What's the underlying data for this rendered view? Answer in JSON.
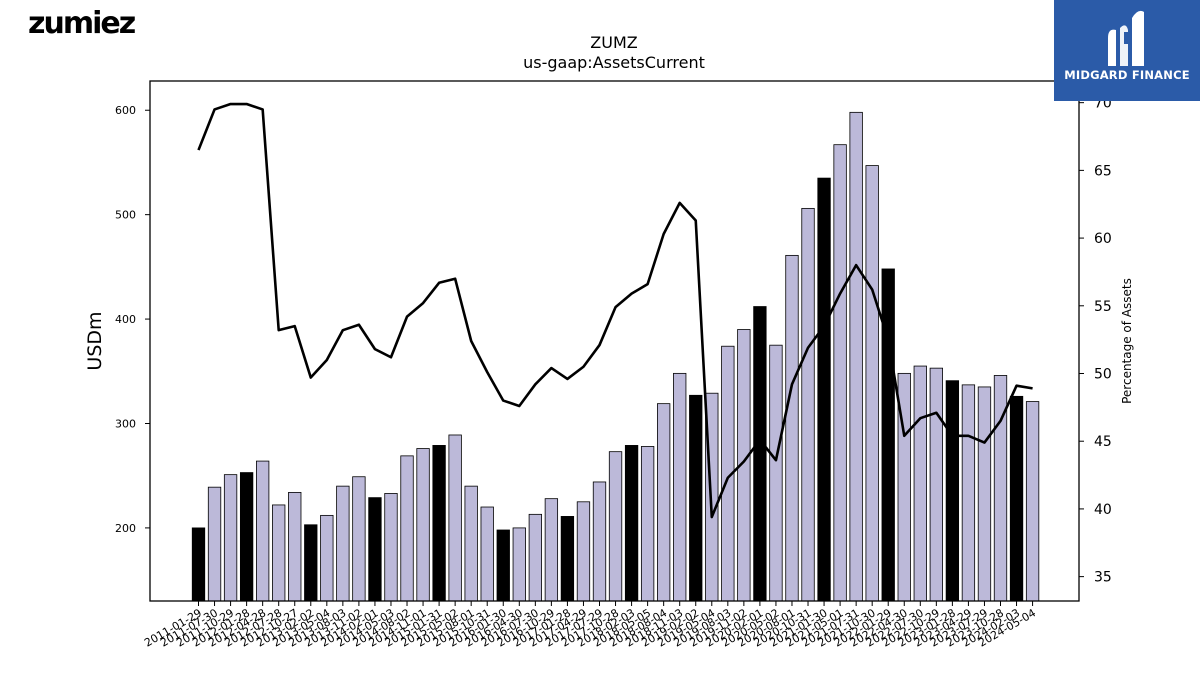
{
  "brand_left": "zumiez",
  "brand_right": "MIDGARD FINANCE",
  "chart_data": {
    "type": "bar",
    "title": "ZUMZ",
    "subtitle": "us-gaap:AssetsCurrent",
    "ylabel": "USDm",
    "y2label": "Percentage of Assets",
    "ylim": [
      130,
      628
    ],
    "y2lim": [
      33.2,
      71.6
    ],
    "yticks": [
      200,
      300,
      400,
      500,
      600
    ],
    "y2ticks": [
      35,
      40,
      45,
      50,
      55,
      60,
      65,
      70
    ],
    "bar_color": "#bcb9d9",
    "highlight_color": "#000000",
    "line_color": "#000000",
    "categories": [
      "2011-01-29",
      "2011-07-30",
      "2011-10-29",
      "2012-01-28",
      "2012-04-28",
      "2012-07-28",
      "2012-10-27",
      "2013-02-02",
      "2013-05-04",
      "2013-08-03",
      "2013-11-02",
      "2014-02-01",
      "2014-05-03",
      "2014-08-02",
      "2014-11-01",
      "2015-01-31",
      "2015-05-02",
      "2015-08-01",
      "2015-10-31",
      "2016-01-30",
      "2016-04-30",
      "2016-07-30",
      "2016-10-29",
      "2017-01-28",
      "2017-04-29",
      "2017-07-29",
      "2017-10-28",
      "2018-02-03",
      "2018-05-05",
      "2018-08-04",
      "2018-11-03",
      "2019-02-02",
      "2019-05-04",
      "2019-08-03",
      "2019-11-02",
      "2020-02-01",
      "2020-05-02",
      "2020-08-01",
      "2020-10-31",
      "2021-01-30",
      "2021-05-01",
      "2021-07-31",
      "2021-10-30",
      "2022-01-29",
      "2022-04-30",
      "2022-07-30",
      "2022-10-29",
      "2023-01-28",
      "2023-04-29",
      "2023-07-29",
      "2023-10-28",
      "2024-02-03",
      "2024-05-04"
    ],
    "series": [
      {
        "values": [
          200,
          239,
          251,
          253,
          264,
          222,
          234,
          203,
          212,
          240,
          249,
          229,
          233,
          269,
          276,
          279,
          289,
          240,
          220,
          198,
          200,
          213,
          228,
          211,
          225,
          244,
          273,
          279,
          278,
          319,
          348,
          327,
          329,
          374,
          390,
          412,
          375,
          461,
          506,
          535,
          567,
          598,
          547,
          448,
          348,
          355,
          353,
          341,
          337,
          335,
          346,
          326,
          321
        ],
        "highlight": [
          true,
          false,
          false,
          true,
          false,
          false,
          false,
          true,
          false,
          false,
          false,
          true,
          false,
          false,
          false,
          true,
          false,
          false,
          false,
          true,
          false,
          false,
          false,
          true,
          false,
          false,
          false,
          true,
          false,
          false,
          false,
          true,
          false,
          false,
          false,
          true,
          false,
          false,
          false,
          true,
          false,
          false,
          false,
          true,
          false,
          false,
          false,
          true,
          false,
          false,
          false,
          true,
          false
        ]
      },
      {
        "axis": "right",
        "type": "line",
        "values": [
          66.5,
          69.5,
          69.9,
          69.9,
          69.5,
          53.2,
          53.5,
          49.7,
          51.0,
          53.2,
          53.6,
          51.8,
          51.2,
          54.2,
          55.2,
          56.7,
          57.0,
          52.4,
          50.1,
          48.0,
          47.6,
          49.2,
          50.4,
          49.6,
          50.5,
          52.1,
          54.9,
          55.9,
          56.6,
          60.3,
          62.6,
          61.3,
          39.4,
          42.3,
          43.5,
          45.1,
          43.6,
          49.2,
          51.9,
          53.5,
          55.9,
          58.0,
          56.2,
          52.5,
          45.4,
          46.7,
          47.1,
          45.4,
          45.4,
          44.9,
          46.5,
          49.1,
          48.9
        ]
      }
    ]
  }
}
